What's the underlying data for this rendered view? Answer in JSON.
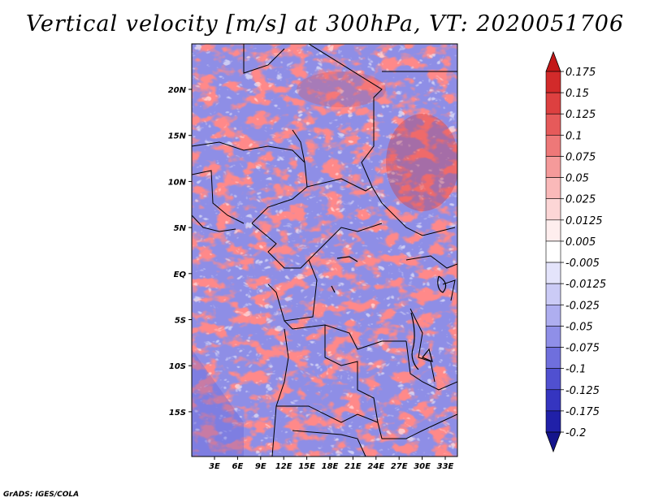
{
  "title": "Vertical velocity [m/s] at 300hPa, VT: 2020051706",
  "footer": "GrADS: IGES/COLA",
  "map": {
    "variable": "Vertical velocity",
    "units": "m/s",
    "level": "300hPa",
    "valid_time": "2020051706",
    "lat_ticks": [
      "20N",
      "15N",
      "10N",
      "5N",
      "EQ",
      "5S",
      "10S",
      "15S"
    ],
    "lon_ticks": [
      "3E",
      "6E",
      "9E",
      "12E",
      "15E",
      "18E",
      "21E",
      "24E",
      "27E",
      "30E",
      "33E"
    ]
  },
  "colorbar": {
    "labels": [
      "0.175",
      "0.15",
      "0.125",
      "0.1",
      "0.075",
      "0.05",
      "0.025",
      "0.0125",
      "0.005",
      "-0.005",
      "-0.0125",
      "-0.025",
      "-0.05",
      "-0.075",
      "-0.1",
      "-0.125",
      "-0.175",
      "-0.2"
    ],
    "colors": [
      "#c31818",
      "#d22a2a",
      "#dd4040",
      "#e65a5a",
      "#ee7878",
      "#f59a9a",
      "#fab9b9",
      "#fcd6d6",
      "#feeeee",
      "#ffffff",
      "#e4e4fb",
      "#cbcbf6",
      "#aeaef0",
      "#8f8fe8",
      "#6f6fdd",
      "#5050d0",
      "#3535c0",
      "#2020a8",
      "#14148c"
    ]
  }
}
